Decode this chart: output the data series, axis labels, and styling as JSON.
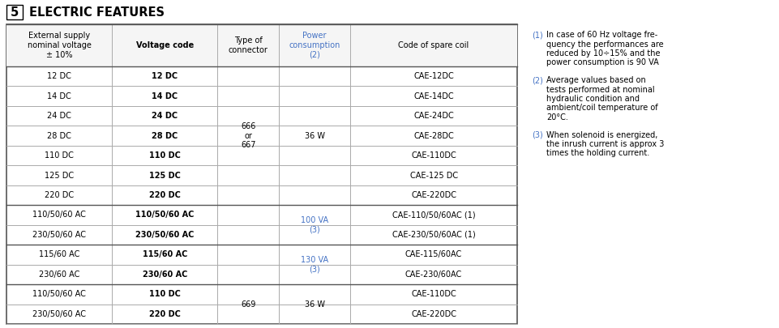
{
  "title_num": "5",
  "title_text": "ELECTRIC FEATURES",
  "header": [
    "External supply\nnominal voltage\n± 10%",
    "Voltage code",
    "Type of\nconnector",
    "Power\nconsumption\n(2)",
    "Code of spare coil"
  ],
  "rows": [
    [
      "12 DC",
      "12 DC",
      "",
      "",
      "CAE-12DC"
    ],
    [
      "14 DC",
      "14 DC",
      "",
      "",
      "CAE-14DC"
    ],
    [
      "24 DC",
      "24 DC",
      "",
      "",
      "CAE-24DC"
    ],
    [
      "28 DC",
      "28 DC",
      "",
      "",
      "CAE-28DC"
    ],
    [
      "110 DC",
      "110 DC",
      "",
      "",
      "CAE-110DC"
    ],
    [
      "125 DC",
      "125 DC",
      "",
      "",
      "CAE-125 DC"
    ],
    [
      "220 DC",
      "220 DC",
      "",
      "",
      "CAE-220DC"
    ],
    [
      "110/50/60 AC",
      "110/50/60 AC",
      "",
      "",
      "CAE-110/50/60AC (1)"
    ],
    [
      "230/50/60 AC",
      "230/50/60 AC",
      "",
      "",
      "CAE-230/50/60AC (1)"
    ],
    [
      "115/60 AC",
      "115/60 AC",
      "",
      "",
      "CAE-115/60AC"
    ],
    [
      "230/60 AC",
      "230/60 AC",
      "",
      "",
      "CAE-230/60AC"
    ],
    [
      "110/50/60 AC",
      "110 DC",
      "",
      "",
      "CAE-110DC"
    ],
    [
      "230/50/60 AC",
      "220 DC",
      "",
      "",
      "CAE-220DC"
    ]
  ],
  "col_props": [
    0.155,
    0.155,
    0.09,
    0.105,
    0.245
  ],
  "merge_connector": [
    {
      "rows": [
        0,
        6
      ],
      "text": "666\nor\n667"
    },
    {
      "rows": [
        11,
        12
      ],
      "text": "669"
    }
  ],
  "merge_power": [
    {
      "rows": [
        0,
        6
      ],
      "text": "36 W",
      "color": "#000000"
    },
    {
      "rows": [
        7,
        8
      ],
      "text": "100 VA\n(3)",
      "color": "#4472c4"
    },
    {
      "rows": [
        9,
        10
      ],
      "text": "130 VA\n(3)",
      "color": "#4472c4"
    },
    {
      "rows": [
        11,
        12
      ],
      "text": "36 W",
      "color": "#000000"
    }
  ],
  "thick_after_rows": [
    6,
    8,
    10
  ],
  "notes": [
    {
      "num": "(1)",
      "lines": [
        "In case of 60 Hz voltage fre-",
        "quency the performances are",
        "reduced by 10÷15% and the",
        "power consumption is 90 VA"
      ]
    },
    {
      "num": "(2)",
      "lines": [
        "Average values based on",
        "tests performed at nominal",
        "hydraulic condition and",
        "ambient/coil temperature of",
        "20°C."
      ]
    },
    {
      "num": "(3)",
      "lines": [
        "When solenoid is energized,",
        "the inrush current is approx 3",
        "times the holding current."
      ]
    }
  ],
  "power_color": "#4472c4",
  "note_color": "#4472c4",
  "line_color": "#aaaaaa",
  "border_color": "#555555",
  "text_color": "#000000",
  "bg_color": "#ffffff",
  "font_size": 7.0,
  "note_font_size": 7.0,
  "title_font_size": 10.5
}
